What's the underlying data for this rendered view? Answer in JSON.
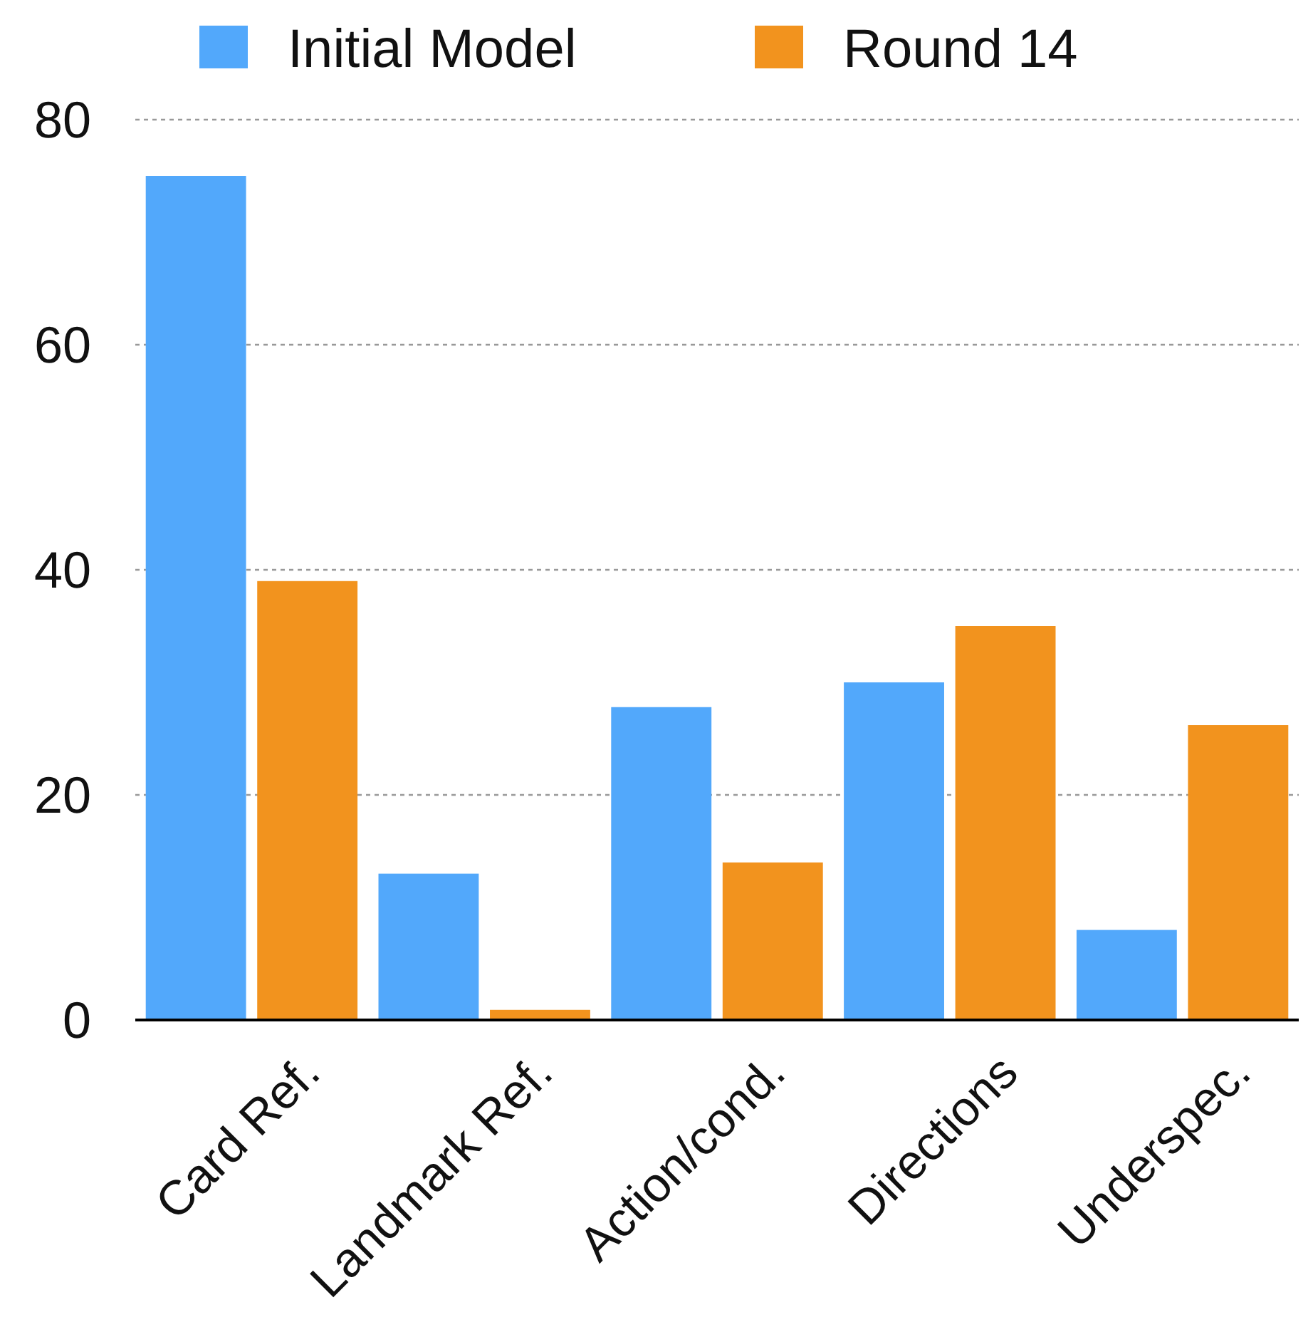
{
  "chart_data": {
    "type": "bar",
    "categories": [
      "Card Ref.",
      "Landmark Ref.",
      "Action/cond.",
      "Directions",
      "Underspec."
    ],
    "series": [
      {
        "name": "Initial Model",
        "color": "#52a8fb",
        "values": [
          75,
          13,
          27.8,
          30,
          8
        ]
      },
      {
        "name": "Round 14",
        "color": "#f2931e",
        "values": [
          39,
          0.9,
          14,
          35,
          26.2
        ]
      }
    ],
    "ylim": [
      0,
      80
    ],
    "yticks": [
      0,
      20,
      40,
      60,
      80
    ],
    "grid": "y",
    "legend": "top"
  }
}
